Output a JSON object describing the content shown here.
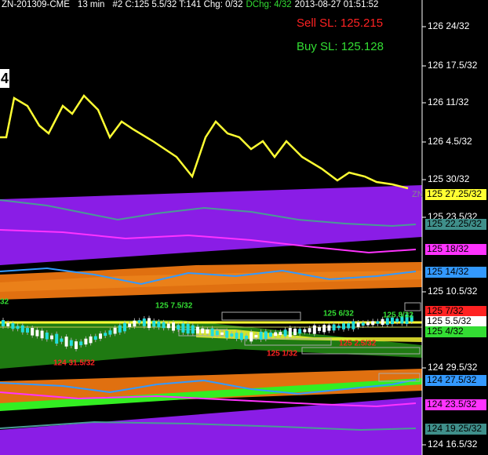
{
  "header": {
    "symbol": "ZN-201309-CME",
    "interval": "13 min",
    "stats": "#2 C:125 5.5/32 T:141 Chg: 0/32",
    "dchg": "DChg: 4/32",
    "timestamp": "2013-08-27 01:51:52"
  },
  "stop_levels": {
    "sell": "Sell SL: 125.215",
    "buy": "Buy SL: 125.128"
  },
  "price_axis": [
    "126 24/32",
    "126 17.5/32",
    "126 11/32",
    "126 4.5/32",
    "125 30/32",
    "125 23.5/32",
    "125 10.5/32",
    "124 29.5/32",
    "124 16.5/32"
  ],
  "price_tags": [
    {
      "label": "125 27.25/32",
      "color": "#ffff33"
    },
    {
      "label": "125 22.25/32",
      "color": "#3f8f8a"
    },
    {
      "label": "125 18/32",
      "color": "#ff33ff"
    },
    {
      "label": "125 14/32",
      "color": "#3399ff"
    },
    {
      "label": "125 7/32",
      "color": "#ff2222"
    },
    {
      "label": "125 5.5/32",
      "color": "#ffffff"
    },
    {
      "label": "125 4/32",
      "color": "#33dd33"
    },
    {
      "label": "124 27.5/32",
      "color": "#3399ff"
    },
    {
      "label": "124 23.5/32",
      "color": "#ff33ff"
    },
    {
      "label": "124 19.25/32",
      "color": "#3f8f8a"
    }
  ],
  "annotations": [
    {
      "text": "125 7.5/32",
      "color": "#33dd33"
    },
    {
      "text": "125 6/32",
      "color": "#33dd33"
    },
    {
      "text": "125 8/32",
      "color": "#33dd33"
    },
    {
      "text": "124 31.5/32",
      "color": "#ff2222"
    },
    {
      "text": "125 1/32",
      "color": "#ff2222"
    },
    {
      "text": "125 2.5/32",
      "color": "#ff2222"
    }
  ],
  "symbol_tag": "ZN",
  "bar_number": "4",
  "edge_label": "32"
}
